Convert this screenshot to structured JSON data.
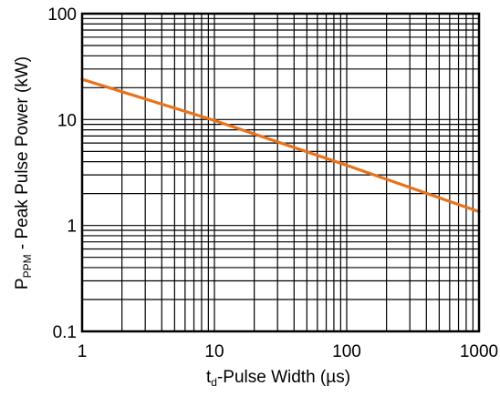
{
  "chart_data": {
    "type": "line",
    "title": "",
    "x_scale": "log",
    "y_scale": "log",
    "xlim": [
      1,
      1000
    ],
    "ylim": [
      0.1,
      100
    ],
    "grid": true,
    "legend": "none",
    "xlabel": {
      "main": "t",
      "sub": "d",
      "rest": "-Pulse Width (µs)"
    },
    "ylabel": {
      "main": "P",
      "sub": "PPM",
      "rest": " - Peak Pulse Power (kW)"
    },
    "x_ticks": [
      "1",
      "10",
      "100",
      "1000"
    ],
    "y_ticks": [
      "0.1",
      "1",
      "10",
      "100"
    ],
    "series": [
      {
        "color": "#E8731C",
        "x": [
          1,
          10,
          100,
          1000
        ],
        "y": [
          24,
          9.8,
          3.7,
          1.35
        ]
      }
    ]
  }
}
